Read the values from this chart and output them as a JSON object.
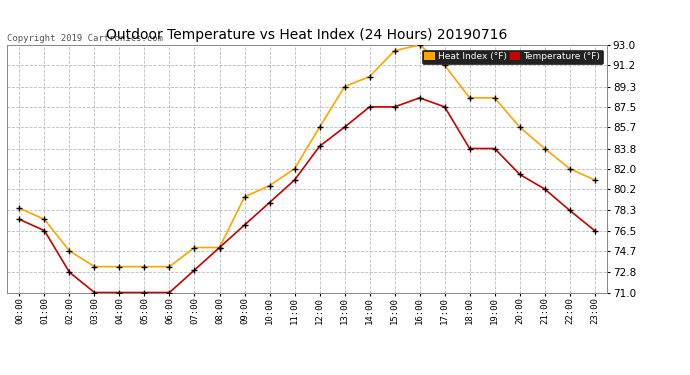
{
  "title": "Outdoor Temperature vs Heat Index (24 Hours) 20190716",
  "copyright": "Copyright 2019 Cartronics.com",
  "hours": [
    "00:00",
    "01:00",
    "02:00",
    "03:00",
    "04:00",
    "05:00",
    "06:00",
    "07:00",
    "08:00",
    "09:00",
    "10:00",
    "11:00",
    "12:00",
    "13:00",
    "14:00",
    "15:00",
    "16:00",
    "17:00",
    "18:00",
    "19:00",
    "20:00",
    "21:00",
    "22:00",
    "23:00"
  ],
  "heat_index": [
    78.5,
    77.5,
    74.7,
    73.3,
    73.3,
    73.3,
    73.3,
    75.0,
    75.0,
    79.5,
    80.5,
    82.0,
    85.7,
    89.3,
    90.2,
    92.5,
    93.0,
    91.2,
    88.3,
    88.3,
    85.7,
    83.8,
    82.0,
    81.0
  ],
  "temperature": [
    77.5,
    76.5,
    72.8,
    71.0,
    71.0,
    71.0,
    71.0,
    73.0,
    75.0,
    77.0,
    79.0,
    81.0,
    84.0,
    85.7,
    87.5,
    87.5,
    88.3,
    87.5,
    83.8,
    83.8,
    81.5,
    80.2,
    78.3,
    76.5
  ],
  "heat_index_color": "#FFA500",
  "temperature_color": "#CC0000",
  "marker_color": "#000000",
  "ylim_min": 71.0,
  "ylim_max": 93.0,
  "yticks": [
    71.0,
    72.8,
    74.7,
    76.5,
    78.3,
    80.2,
    82.0,
    83.8,
    85.7,
    87.5,
    89.3,
    91.2,
    93.0
  ],
  "background_color": "#ffffff",
  "grid_color": "#bbbbbb",
  "title_fontsize": 10,
  "copyright_fontsize": 6.5,
  "legend_heat_label": "Heat Index (°F)",
  "legend_temp_label": "Temperature (°F)"
}
